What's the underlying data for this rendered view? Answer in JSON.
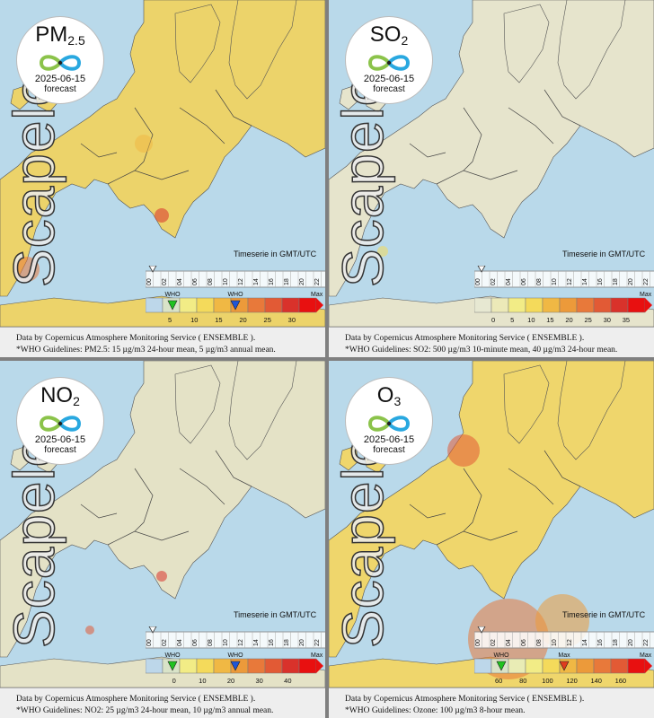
{
  "panels": [
    {
      "pollutant": {
        "main": "PM",
        "sub": "2.5"
      },
      "date": "2025-06-15",
      "forecast_label": "forecast",
      "brand": "Scapeler",
      "timeseries_label": "Timeserie in GMT/UTC",
      "hours": [
        "00",
        "02",
        "04",
        "06",
        "08",
        "10",
        "12",
        "14",
        "16",
        "18",
        "20",
        "22"
      ],
      "scale_ticks": [
        "5",
        "10",
        "15",
        "20",
        "25",
        "30"
      ],
      "max_label": "Max",
      "who_markers": [
        {
          "label": "WHO",
          "color": "#1fc21f"
        },
        {
          "label": "WHO",
          "color": "#1f55d6"
        }
      ],
      "footer_line1": "Data by Copernicus Atmosphere Monitoring Service ( ENSEMBLE ).",
      "footer_line2": "*WHO Guidelines: PM2.5: 15 µg/m3 24-hour mean, 5 µg/m3 annual mean.",
      "palette": [
        "#bdd7ea",
        "#d9e3c8",
        "#f2ec86",
        "#f4da5b",
        "#f0b844",
        "#ec9a3a",
        "#e8793a",
        "#e25a35",
        "#d9322b",
        "#e81010"
      ],
      "land": "#ecd36a"
    },
    {
      "pollutant": {
        "main": "SO",
        "sub": "2"
      },
      "date": "2025-06-15",
      "forecast_label": "forecast",
      "brand": "Scapeler",
      "timeseries_label": "Timeserie in GMT/UTC",
      "hours": [
        "00",
        "02",
        "04",
        "06",
        "08",
        "10",
        "12",
        "14",
        "16",
        "18",
        "20",
        "22"
      ],
      "scale_ticks": [
        "0",
        "5",
        "10",
        "15",
        "20",
        "25",
        "30",
        "35"
      ],
      "max_label": "Max",
      "who_markers": [],
      "footer_line1": "Data by Copernicus Atmosphere Monitoring Service ( ENSEMBLE ).",
      "footer_line2": "*WHO Guidelines: SO2: 500 µg/m3 10-minute mean, 40 µg/m3 24-hour mean.",
      "palette": [
        "#e7e8d2",
        "#ece9b8",
        "#f2ec86",
        "#f4da5b",
        "#f0b844",
        "#ec9a3a",
        "#e8793a",
        "#e25a35",
        "#d9322b",
        "#e81010"
      ],
      "land": "#e6e4cc"
    },
    {
      "pollutant": {
        "main": "NO",
        "sub": "2"
      },
      "date": "2025-06-15",
      "forecast_label": "forecast",
      "brand": "Scapeler",
      "timeseries_label": "Timeserie in GMT/UTC",
      "hours": [
        "00",
        "02",
        "04",
        "06",
        "08",
        "10",
        "12",
        "14",
        "16",
        "18",
        "20",
        "22"
      ],
      "scale_ticks": [
        "0",
        "10",
        "20",
        "30",
        "40"
      ],
      "max_label": "Max",
      "who_markers": [
        {
          "label": "WHO",
          "color": "#1fc21f"
        },
        {
          "label": "WHO",
          "color": "#1f55d6"
        }
      ],
      "footer_line1": "Data by Copernicus Atmosphere Monitoring Service ( ENSEMBLE ).",
      "footer_line2": "*WHO Guidelines: NO2: 25 µg/m3 24-hour mean, 10 µg/m3 annual mean.",
      "palette": [
        "#bdd7ea",
        "#d9e3c8",
        "#f2ec86",
        "#f4da5b",
        "#f0b844",
        "#ec9a3a",
        "#e8793a",
        "#e25a35",
        "#d9322b",
        "#e81010"
      ],
      "land": "#e4e2c6"
    },
    {
      "pollutant": {
        "main": "O",
        "sub": "3"
      },
      "date": "2025-06-15",
      "forecast_label": "forecast",
      "brand": "Scapeler",
      "timeseries_label": "Timeserie in GMT/UTC",
      "hours": [
        "00",
        "02",
        "04",
        "06",
        "08",
        "10",
        "12",
        "14",
        "16",
        "18",
        "20",
        "22"
      ],
      "scale_ticks": [
        "60",
        "80",
        "100",
        "120",
        "140",
        "160"
      ],
      "max_label": "Max",
      "who_markers": [
        {
          "label": "WHO",
          "color": "#1fc21f"
        },
        {
          "label": "Max",
          "color": "#e03c1e"
        }
      ],
      "footer_line1": "Data by Copernicus Atmosphere Monitoring Service ( ENSEMBLE ).",
      "footer_line2": "*WHO Guidelines: Ozone: 100 µg/m3 8-hour mean.",
      "palette": [
        "#bdd7ea",
        "#d9e3c8",
        "#e9ecb5",
        "#f2ec86",
        "#f4da5b",
        "#f0b844",
        "#ec9a3a",
        "#e8793a",
        "#e25a35",
        "#e81010"
      ],
      "land": "#efd66c"
    }
  ]
}
